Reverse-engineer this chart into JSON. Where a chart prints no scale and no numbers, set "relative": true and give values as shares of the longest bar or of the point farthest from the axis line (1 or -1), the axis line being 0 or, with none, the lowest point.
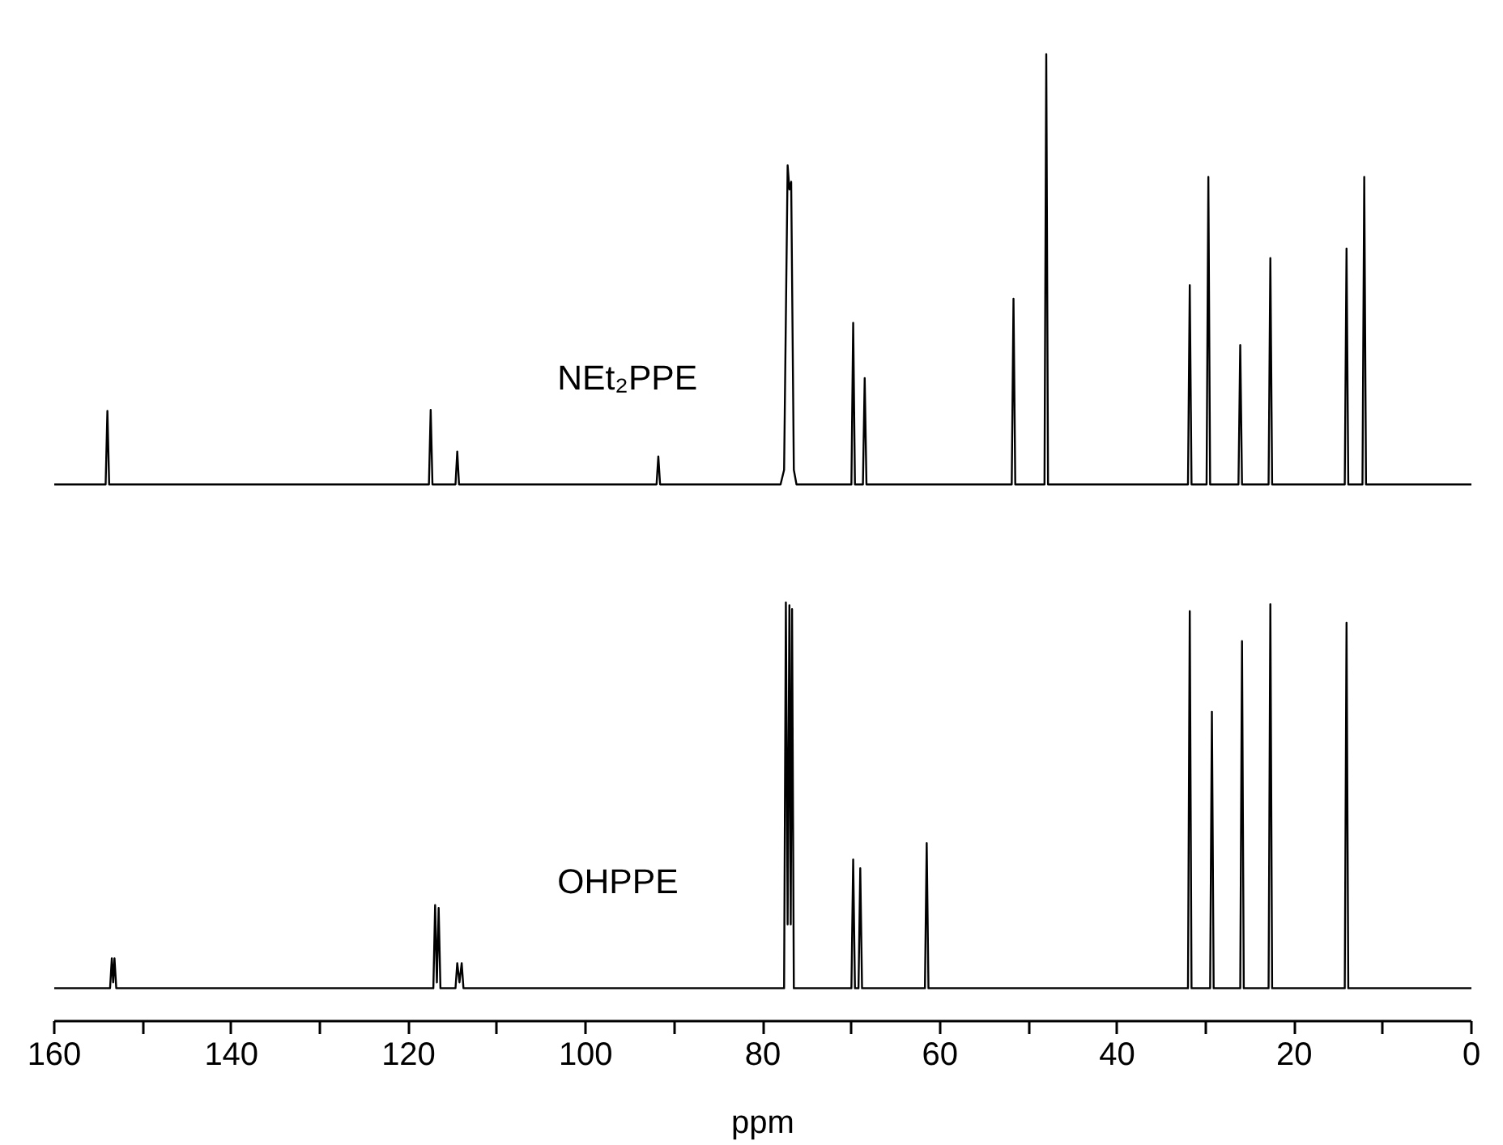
{
  "chart_data": {
    "type": "line",
    "relative": true,
    "xlabel": "ppm",
    "xlim": [
      160,
      0
    ],
    "xticks": [
      160,
      {
        "value": 150,
        "label": null
      },
      140,
      {
        "value": 130,
        "label": null
      },
      120,
      {
        "value": 110,
        "label": null
      },
      100,
      {
        "value": 90,
        "label": null
      },
      80,
      {
        "value": 70,
        "label": null
      },
      60,
      {
        "value": 50,
        "label": null
      },
      40,
      {
        "value": 30,
        "label": null
      },
      20,
      {
        "value": 10,
        "label": null
      },
      0
    ],
    "grid": false,
    "series": [
      {
        "name": "NEt₂PPE",
        "color": "#000000",
        "x": [
          160,
          154.2,
          154,
          153.8,
          117.7,
          117.5,
          117.3,
          114.7,
          114.5,
          114.3,
          92,
          91.8,
          91.6,
          78,
          77.6,
          77.2,
          77.0,
          76.8,
          76.5,
          76.2,
          70,
          69.8,
          69.6,
          68.7,
          68.5,
          68.3,
          51.9,
          51.7,
          51.5,
          48.2,
          48,
          47.8,
          32,
          31.8,
          31.6,
          29.9,
          29.7,
          29.5,
          26.3,
          26.1,
          25.9,
          22.9,
          22.7,
          22.5,
          14.3,
          14.1,
          13.9,
          12.3,
          12.1,
          11.9,
          0
        ],
        "values": [
          0.555,
          0.555,
          0.631,
          0.555,
          0.555,
          0.632,
          0.555,
          0.555,
          0.589,
          0.555,
          0.555,
          0.584,
          0.555,
          0.555,
          0.57,
          0.885,
          0.86,
          0.868,
          0.57,
          0.555,
          0.555,
          0.722,
          0.555,
          0.555,
          0.665,
          0.555,
          0.555,
          0.747,
          0.555,
          0.555,
          1.0,
          0.555,
          0.555,
          0.761,
          0.555,
          0.555,
          0.873,
          0.555,
          0.555,
          0.699,
          0.555,
          0.555,
          0.789,
          0.555,
          0.555,
          0.799,
          0.555,
          0.555,
          0.873,
          0.555,
          0.555
        ]
      },
      {
        "name": "OHPPE",
        "color": "#000000",
        "x": [
          160,
          153.7,
          153.5,
          153.35,
          153.2,
          153.0,
          117.2,
          117,
          116.8,
          116.6,
          116.4,
          114.7,
          114.5,
          114.25,
          114.0,
          113.8,
          77.6,
          77.4,
          77.2,
          77.0,
          76.85,
          76.7,
          76.5,
          70,
          69.8,
          69.6,
          69.2,
          69,
          68.8,
          61.7,
          61.5,
          61.3,
          32,
          31.8,
          31.6,
          29.5,
          29.3,
          29.1,
          26.1,
          25.9,
          25.7,
          22.9,
          22.7,
          22.5,
          14.3,
          14.1,
          13.9,
          0
        ],
        "values": [
          0.034,
          0.034,
          0.065,
          0.04,
          0.065,
          0.034,
          0.034,
          0.12,
          0.04,
          0.117,
          0.034,
          0.034,
          0.06,
          0.04,
          0.06,
          0.034,
          0.034,
          0.433,
          0.1,
          0.43,
          0.1,
          0.426,
          0.034,
          0.034,
          0.167,
          0.034,
          0.034,
          0.158,
          0.034,
          0.034,
          0.184,
          0.034,
          0.034,
          0.424,
          0.034,
          0.034,
          0.32,
          0.034,
          0.034,
          0.393,
          0.034,
          0.034,
          0.431,
          0.034,
          0.034,
          0.412,
          0.034,
          0.034
        ]
      }
    ]
  }
}
